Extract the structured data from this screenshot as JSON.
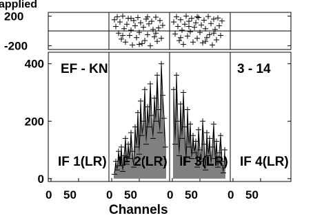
{
  "chart_data": {
    "type": "scatter",
    "title": "EF - KN",
    "subtitle": "3 - 14",
    "xlabel": "Channels",
    "phase_axis": {
      "label": "applied",
      "ylim": [
        -250,
        250
      ],
      "ticks": [
        "200",
        "-200"
      ],
      "tick_values": [
        200,
        -200
      ],
      "reference_line": 0
    },
    "amp_axis": {
      "ylim": [
        -10,
        440
      ],
      "ticks": [
        "400",
        "200",
        "0"
      ],
      "tick_values": [
        400,
        200,
        0
      ]
    },
    "xlim": [
      0,
      40
    ],
    "x_ticks": [
      "0",
      "50"
    ],
    "x_tick_values": [
      0,
      50
    ],
    "panels": [
      {
        "label": "IF 1(LR)",
        "phase": [],
        "amp": []
      },
      {
        "label": "IF 2(LR)",
        "phase": [
          [
            2,
            150
          ],
          [
            3,
            60
          ],
          [
            4,
            190
          ],
          [
            5,
            -30
          ],
          [
            6,
            120
          ],
          [
            7,
            -110
          ],
          [
            8,
            200
          ],
          [
            9,
            30
          ],
          [
            10,
            -150
          ],
          [
            11,
            90
          ],
          [
            12,
            170
          ],
          [
            13,
            -60
          ],
          [
            14,
            10
          ],
          [
            15,
            -190
          ],
          [
            16,
            140
          ],
          [
            17,
            70
          ],
          [
            18,
            -90
          ],
          [
            19,
            180
          ],
          [
            20,
            -20
          ],
          [
            21,
            110
          ],
          [
            22,
            -170
          ],
          [
            23,
            50
          ],
          [
            24,
            -130
          ],
          [
            25,
            160
          ],
          [
            26,
            -50
          ],
          [
            27,
            95
          ],
          [
            28,
            -200
          ],
          [
            29,
            130
          ],
          [
            30,
            20
          ],
          [
            31,
            -80
          ],
          [
            32,
            185
          ],
          [
            33,
            -140
          ],
          [
            34,
            40
          ],
          [
            35,
            140
          ],
          [
            36,
            -100
          ],
          [
            37,
            75
          ],
          [
            8,
            -60
          ],
          [
            14,
            170
          ],
          [
            20,
            -180
          ],
          [
            26,
            190
          ],
          [
            32,
            -30
          ]
        ],
        "amp": [
          [
            2,
            15
          ],
          [
            3,
            60
          ],
          [
            4,
            30
          ],
          [
            5,
            95
          ],
          [
            6,
            45
          ],
          [
            7,
            110
          ],
          [
            8,
            25
          ],
          [
            9,
            80
          ],
          [
            10,
            140
          ],
          [
            11,
            50
          ],
          [
            12,
            120
          ],
          [
            13,
            70
          ],
          [
            14,
            160
          ],
          [
            15,
            95
          ],
          [
            16,
            40
          ],
          [
            17,
            180
          ],
          [
            18,
            110
          ],
          [
            19,
            230
          ],
          [
            20,
            85
          ],
          [
            21,
            270
          ],
          [
            22,
            150
          ],
          [
            23,
            200
          ],
          [
            24,
            310
          ],
          [
            25,
            120
          ],
          [
            26,
            250
          ],
          [
            27,
            180
          ],
          [
            28,
            330
          ],
          [
            29,
            220
          ],
          [
            30,
            140
          ],
          [
            31,
            280
          ],
          [
            32,
            200
          ],
          [
            33,
            360
          ],
          [
            34,
            240
          ],
          [
            35,
            160
          ],
          [
            36,
            400
          ],
          [
            37,
            290
          ],
          [
            38,
            210
          ],
          [
            39,
            110
          ]
        ]
      },
      {
        "label": "IF 3(LR)",
        "phase": [
          [
            1,
            120
          ],
          [
            2,
            -40
          ],
          [
            3,
            190
          ],
          [
            4,
            60
          ],
          [
            5,
            -130
          ],
          [
            6,
            150
          ],
          [
            7,
            10
          ],
          [
            8,
            -180
          ],
          [
            9,
            90
          ],
          [
            10,
            200
          ],
          [
            11,
            -70
          ],
          [
            12,
            130
          ],
          [
            13,
            -10
          ],
          [
            14,
            170
          ],
          [
            15,
            -150
          ],
          [
            16,
            50
          ],
          [
            17,
            110
          ],
          [
            18,
            -100
          ],
          [
            19,
            180
          ],
          [
            20,
            -20
          ],
          [
            21,
            80
          ],
          [
            22,
            -160
          ],
          [
            23,
            145
          ],
          [
            24,
            30
          ],
          [
            25,
            -90
          ],
          [
            26,
            195
          ],
          [
            27,
            -50
          ],
          [
            28,
            100
          ],
          [
            29,
            -190
          ],
          [
            30,
            160
          ],
          [
            31,
            20
          ],
          [
            32,
            -120
          ],
          [
            33,
            175
          ],
          [
            34,
            70
          ],
          [
            35,
            -60
          ],
          [
            36,
            135
          ],
          [
            6,
            -90
          ],
          [
            12,
            60
          ],
          [
            18,
            190
          ],
          [
            24,
            -140
          ],
          [
            30,
            -30
          ]
        ],
        "amp": [
          [
            1,
            310
          ],
          [
            2,
            120
          ],
          [
            3,
            360
          ],
          [
            4,
            200
          ],
          [
            5,
            80
          ],
          [
            6,
            260
          ],
          [
            7,
            140
          ],
          [
            8,
            300
          ],
          [
            9,
            180
          ],
          [
            10,
            60
          ],
          [
            11,
            240
          ],
          [
            12,
            110
          ],
          [
            13,
            190
          ],
          [
            14,
            70
          ],
          [
            15,
            150
          ],
          [
            16,
            90
          ],
          [
            17,
            130
          ],
          [
            18,
            40
          ],
          [
            19,
            170
          ],
          [
            20,
            100
          ],
          [
            21,
            60
          ],
          [
            22,
            200
          ],
          [
            23,
            120
          ],
          [
            24,
            30
          ],
          [
            25,
            160
          ],
          [
            26,
            80
          ],
          [
            27,
            140
          ],
          [
            28,
            50
          ],
          [
            29,
            110
          ],
          [
            30,
            190
          ],
          [
            31,
            70
          ],
          [
            32,
            130
          ],
          [
            33,
            40
          ],
          [
            34,
            90
          ],
          [
            35,
            150
          ],
          [
            36,
            60
          ],
          [
            37,
            20
          ],
          [
            38,
            100
          ]
        ]
      },
      {
        "label": "IF 4(LR)",
        "phase": [],
        "amp": []
      }
    ]
  }
}
